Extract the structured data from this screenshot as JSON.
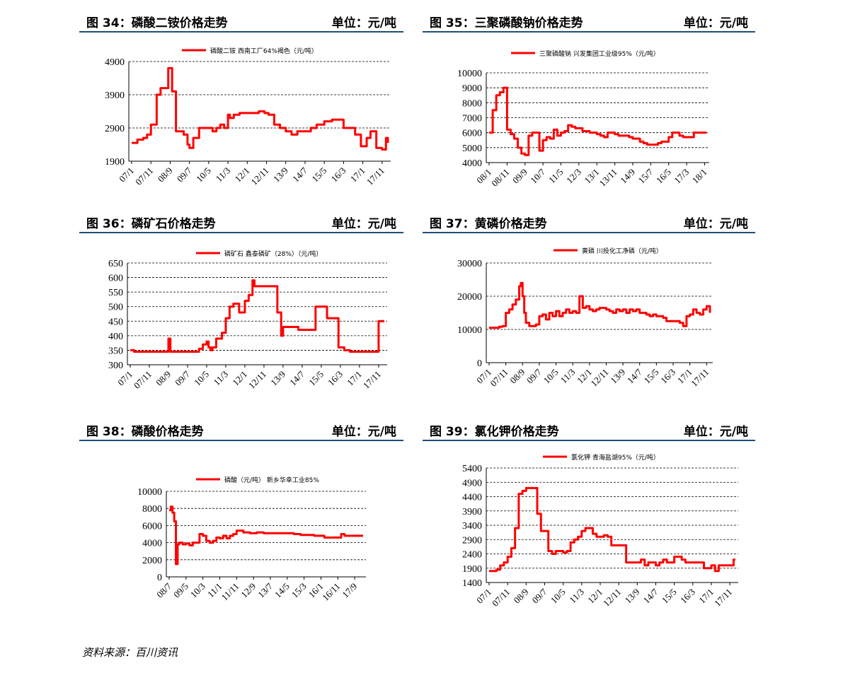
{
  "source": "资料来源：百川资讯",
  "charts": [
    {
      "title": "图 34：磷酸二铵价格走势",
      "unit": "单位：元/吨"
    },
    {
      "title": "图 35：三聚磷酸钠价格走势",
      "unit": "单位：元/吨"
    },
    {
      "title": "图 36：磷矿石价格走势",
      "unit": "单位：元/吨"
    },
    {
      "title": "图 37：黄磷价格走势",
      "unit": "单位：元/吨"
    },
    {
      "title": "图 38：磷酸价格走势",
      "unit": "单位：元/吨"
    },
    {
      "title": "图 39：氯化钾价格走势",
      "unit": "单位：元/吨"
    }
  ],
  "colors": {
    "line": "#ff0000",
    "header_rule": "#1f4e79",
    "grid": "#000000"
  },
  "chart_data": [
    {
      "type": "line",
      "series": [
        {
          "name": "磷酸二铵 西南工厂64%褐色（元/吨）",
          "x": [
            "07/1",
            "07/4",
            "07/7",
            "07/9",
            "07/11",
            "08/2",
            "08/4",
            "08/7",
            "08/8",
            "08/9",
            "08/10",
            "08/11",
            "08/12",
            "09/2",
            "09/4",
            "09/6",
            "09/7",
            "09/9",
            "09/12",
            "10/3",
            "10/5",
            "10/7",
            "10/9",
            "10/11",
            "11/1",
            "11/3",
            "11/4",
            "11/6",
            "11/9",
            "12/1",
            "12/4",
            "12/7",
            "12/10",
            "12/12",
            "13/3",
            "13/6",
            "13/9",
            "13/12",
            "14/3",
            "14/7",
            "14/10",
            "15/1",
            "15/5",
            "15/9",
            "15/12",
            "16/3",
            "16/5",
            "16/9",
            "16/12",
            "17/3",
            "17/5",
            "17/8",
            "17/11",
            "18/1",
            "18/2"
          ],
          "values": [
            2450,
            2550,
            2600,
            2700,
            3000,
            3900,
            4100,
            4100,
            4700,
            4700,
            4000,
            4000,
            2800,
            2800,
            2700,
            2400,
            2300,
            2600,
            2900,
            2900,
            2900,
            2800,
            2900,
            3000,
            2900,
            3300,
            3200,
            3300,
            3350,
            3350,
            3350,
            3400,
            3350,
            3300,
            3000,
            2900,
            2800,
            2700,
            2800,
            2800,
            2900,
            3000,
            3100,
            3150,
            3150,
            2900,
            2900,
            2700,
            2350,
            2600,
            2800,
            2300,
            2250,
            2600,
            2450
          ]
        }
      ],
      "ylim": [
        1900,
        4900
      ],
      "yticks": [
        1900,
        2900,
        3900,
        4900
      ],
      "xticks": [
        "07/1",
        "07/11",
        "08/9",
        "09/7",
        "10/5",
        "11/3",
        "12/1",
        "12/11",
        "13/9",
        "14/7",
        "15/5",
        "16/3",
        "17/1",
        "17/11"
      ]
    },
    {
      "type": "line",
      "series": [
        {
          "name": "三聚磷酸钠 兴发集团工业级95%（元/吨）",
          "x": [
            "08/1",
            "08/3",
            "08/5",
            "08/7",
            "08/9",
            "08/11",
            "09/1",
            "09/3",
            "09/5",
            "09/7",
            "09/9",
            "09/11",
            "10/1",
            "10/3",
            "10/5",
            "10/7",
            "10/9",
            "10/11",
            "11/1",
            "11/3",
            "11/5",
            "11/7",
            "11/9",
            "11/11",
            "12/1",
            "12/3",
            "12/5",
            "12/7",
            "12/9",
            "12/11",
            "13/1",
            "13/3",
            "13/5",
            "13/7",
            "13/9",
            "13/11",
            "14/1",
            "14/3",
            "14/5",
            "14/7",
            "14/9",
            "14/11",
            "15/1",
            "15/3",
            "15/5",
            "15/7",
            "15/9",
            "15/11",
            "16/1",
            "16/3",
            "16/5",
            "16/7",
            "16/9",
            "16/11",
            "17/1",
            "17/3",
            "17/5",
            "17/7",
            "17/9",
            "17/11",
            "18/1",
            "18/2"
          ],
          "values": [
            6000,
            7500,
            8500,
            8700,
            9000,
            6200,
            5900,
            5600,
            5000,
            4600,
            4500,
            5800,
            6000,
            6000,
            4800,
            5500,
            5700,
            5600,
            6200,
            5800,
            6000,
            6100,
            6500,
            6400,
            6300,
            6300,
            6100,
            6100,
            6000,
            6000,
            5900,
            5800,
            5700,
            6000,
            6000,
            5900,
            5800,
            5800,
            5800,
            5700,
            5600,
            5600,
            5400,
            5300,
            5200,
            5200,
            5200,
            5300,
            5400,
            5400,
            5700,
            6000,
            6000,
            5800,
            5700,
            5700,
            5700,
            6000,
            6000,
            6000,
            6000,
            6000
          ]
        }
      ],
      "ylim": [
        4000,
        10000
      ],
      "yticks": [
        4000,
        5000,
        6000,
        7000,
        8000,
        9000,
        10000
      ],
      "xticks": [
        "08/1",
        "08/11",
        "09/9",
        "10/7",
        "11/5",
        "12/3",
        "13/1",
        "13/11",
        "14/9",
        "15/7",
        "16/5",
        "17/3",
        "18/1"
      ]
    },
    {
      "type": "line",
      "series": [
        {
          "name": "磷矿石 鑫泰磷矿（28%）（元/吨）",
          "x": [
            "07/1",
            "07/3",
            "07/6",
            "07/9",
            "07/11",
            "08/3",
            "08/6",
            "08/8",
            "08/9",
            "08/10",
            "09/1",
            "09/4",
            "09/7",
            "09/10",
            "10/1",
            "10/3",
            "10/5",
            "10/6",
            "10/7",
            "10/8",
            "10/10",
            "11/1",
            "11/3",
            "11/5",
            "11/7",
            "11/10",
            "12/1",
            "12/3",
            "12/5",
            "12/6",
            "12/8",
            "12/11",
            "13/2",
            "13/6",
            "13/8",
            "13/9",
            "13/11",
            "14/2",
            "14/5",
            "14/8",
            "14/11",
            "15/2",
            "15/5",
            "15/8",
            "15/11",
            "16/2",
            "16/5",
            "16/8",
            "16/11",
            "17/3",
            "17/7",
            "17/9",
            "17/11",
            "18/1",
            "18/2"
          ],
          "values": [
            350,
            345,
            345,
            345,
            345,
            345,
            345,
            345,
            390,
            345,
            345,
            345,
            345,
            345,
            355,
            370,
            380,
            360,
            350,
            360,
            390,
            410,
            460,
            500,
            510,
            480,
            520,
            540,
            590,
            570,
            570,
            570,
            570,
            480,
            400,
            430,
            430,
            430,
            420,
            420,
            420,
            500,
            500,
            460,
            460,
            360,
            350,
            345,
            345,
            345,
            345,
            345,
            450,
            450,
            450
          ]
        }
      ],
      "ylim": [
        300,
        650
      ],
      "yticks": [
        300,
        350,
        400,
        450,
        500,
        550,
        600,
        650
      ],
      "xticks": [
        "07/1",
        "07/11",
        "08/9",
        "09/7",
        "10/5",
        "11/3",
        "12/1",
        "12/11",
        "13/9",
        "14/7",
        "15/5",
        "16/3",
        "17/1",
        "17/11"
      ]
    },
    {
      "type": "line",
      "series": [
        {
          "name": "黄磷 川投化工净磷（元/吨）",
          "x": [
            "07/1",
            "07/3",
            "07/5",
            "07/7",
            "07/9",
            "07/11",
            "08/1",
            "08/3",
            "08/5",
            "08/7",
            "08/8",
            "08/9",
            "08/10",
            "08/11",
            "09/1",
            "09/3",
            "09/5",
            "09/7",
            "09/9",
            "09/11",
            "10/1",
            "10/3",
            "10/5",
            "10/7",
            "10/9",
            "10/11",
            "11/1",
            "11/3",
            "11/5",
            "11/7",
            "11/9",
            "11/11",
            "12/1",
            "12/3",
            "12/5",
            "12/7",
            "12/9",
            "12/11",
            "13/1",
            "13/3",
            "13/5",
            "13/7",
            "13/9",
            "13/11",
            "14/1",
            "14/3",
            "14/5",
            "14/7",
            "14/9",
            "14/11",
            "15/1",
            "15/3",
            "15/5",
            "15/7",
            "15/9",
            "15/11",
            "16/1",
            "16/3",
            "16/5",
            "16/7",
            "16/9",
            "16/11",
            "17/1",
            "17/3",
            "17/5",
            "17/7",
            "17/9",
            "17/11",
            "18/1"
          ],
          "values": [
            10500,
            10500,
            10500,
            10800,
            11000,
            15000,
            16000,
            17500,
            19000,
            23000,
            24000,
            20000,
            15000,
            12000,
            11000,
            11000,
            11500,
            14000,
            14500,
            13000,
            15000,
            14000,
            15500,
            14000,
            15000,
            16000,
            15000,
            15500,
            15000,
            20000,
            16500,
            17000,
            16000,
            15500,
            16000,
            16500,
            16500,
            16000,
            15500,
            15000,
            16000,
            15500,
            16000,
            15000,
            16000,
            15500,
            16000,
            15000,
            15000,
            14500,
            14000,
            14500,
            14000,
            14000,
            13500,
            12500,
            12500,
            12500,
            12500,
            12000,
            11000,
            14000,
            14500,
            16000,
            15000,
            14500,
            16000,
            17000,
            15000
          ]
        }
      ],
      "ylim": [
        0,
        30000
      ],
      "yticks": [
        0,
        10000,
        20000,
        30000
      ],
      "xticks": [
        "07/1",
        "07/11",
        "08/9",
        "09/7",
        "10/5",
        "11/3",
        "12/1",
        "12/11",
        "13/9",
        "14/7",
        "15/5",
        "16/3",
        "17/1",
        "17/11"
      ]
    },
    {
      "type": "line",
      "series": [
        {
          "name": "磷酸（元/吨） 新乡华幸工业85%",
          "x": [
            "08/7",
            "08/8",
            "08/9",
            "08/10",
            "08/11",
            "08/12",
            "09/1",
            "09/3",
            "09/5",
            "09/7",
            "09/9",
            "09/11",
            "10/1",
            "10/3",
            "10/5",
            "10/7",
            "10/9",
            "10/11",
            "11/1",
            "11/3",
            "11/5",
            "11/7",
            "11/9",
            "11/11",
            "12/1",
            "12/3",
            "12/5",
            "12/7",
            "12/9",
            "12/11",
            "13/1",
            "13/3",
            "13/5",
            "13/7",
            "13/9",
            "13/11",
            "14/1",
            "14/3",
            "14/5",
            "14/7",
            "14/9",
            "14/11",
            "15/1",
            "15/3",
            "15/5",
            "15/7",
            "15/9",
            "15/11",
            "16/1",
            "16/3",
            "16/5",
            "16/7",
            "16/9",
            "16/11",
            "17/1",
            "17/3",
            "17/5",
            "17/7",
            "17/9",
            "17/11",
            "18/1",
            "18/2"
          ],
          "values": [
            7800,
            8200,
            7500,
            6500,
            1500,
            3800,
            4000,
            3800,
            3900,
            3700,
            4000,
            4000,
            5000,
            4800,
            4200,
            4000,
            4200,
            4600,
            4500,
            4800,
            4500,
            4800,
            5000,
            5400,
            5400,
            5200,
            5200,
            5100,
            5100,
            5200,
            5200,
            5100,
            5100,
            5100,
            5100,
            5100,
            5100,
            5100,
            5100,
            5100,
            5000,
            5000,
            4900,
            4900,
            4900,
            4900,
            4800,
            4800,
            4800,
            4600,
            4600,
            4600,
            4600,
            4600,
            5000,
            4800,
            4800,
            4800,
            4800,
            4800,
            4800,
            4800
          ]
        }
      ],
      "ylim": [
        0,
        10000
      ],
      "yticks": [
        0,
        2000,
        4000,
        6000,
        8000,
        10000
      ],
      "xticks": [
        "08/7",
        "09/5",
        "10/3",
        "11/1",
        "11/11",
        "12/9",
        "13/7",
        "14/5",
        "15/3",
        "16/1",
        "16/11",
        "17/9"
      ]
    },
    {
      "type": "line",
      "series": [
        {
          "name": "氯化钾 青海盐湖95%（元/吨）",
          "x": [
            "07/1",
            "07/3",
            "07/5",
            "07/7",
            "07/9",
            "07/11",
            "08/1",
            "08/3",
            "08/5",
            "08/7",
            "08/9",
            "08/11",
            "09/1",
            "09/3",
            "09/5",
            "09/7",
            "09/9",
            "09/11",
            "10/1",
            "10/3",
            "10/5",
            "10/7",
            "10/9",
            "10/11",
            "11/1",
            "11/3",
            "11/5",
            "11/7",
            "11/9",
            "11/11",
            "12/1",
            "12/3",
            "12/5",
            "12/7",
            "12/9",
            "12/11",
            "13/1",
            "13/3",
            "13/5",
            "13/7",
            "13/9",
            "13/11",
            "14/1",
            "14/3",
            "14/5",
            "14/7",
            "14/9",
            "14/11",
            "15/1",
            "15/3",
            "15/5",
            "15/7",
            "15/9",
            "15/11",
            "16/1",
            "16/3",
            "16/5",
            "16/7",
            "16/9",
            "16/11",
            "17/1",
            "17/3",
            "17/5",
            "17/7",
            "17/9",
            "17/11",
            "18/1",
            "18/2"
          ],
          "values": [
            1800,
            1800,
            1850,
            2000,
            2100,
            2300,
            2600,
            3300,
            4500,
            4600,
            4700,
            4700,
            4700,
            3800,
            3200,
            3200,
            2500,
            2400,
            2500,
            2500,
            2450,
            2500,
            2800,
            2900,
            3000,
            3200,
            3300,
            3300,
            3100,
            3000,
            3000,
            3050,
            3000,
            2700,
            2700,
            2700,
            2700,
            2100,
            2100,
            2100,
            2100,
            2200,
            2000,
            2100,
            2100,
            2000,
            2100,
            2200,
            2100,
            2100,
            2300,
            2300,
            2200,
            2100,
            2100,
            2100,
            2100,
            2100,
            1900,
            1900,
            2000,
            1800,
            2000,
            2000,
            2000,
            2000,
            2200,
            2200
          ]
        }
      ],
      "ylim": [
        1400,
        5400
      ],
      "yticks": [
        1400,
        1900,
        2400,
        2900,
        3400,
        3900,
        4400,
        4900,
        5400
      ],
      "xticks": [
        "07/1",
        "07/11",
        "08/9",
        "09/7",
        "10/5",
        "11/3",
        "12/1",
        "12/11",
        "13/9",
        "14/7",
        "15/5",
        "16/3",
        "17/1",
        "17/11"
      ]
    }
  ]
}
